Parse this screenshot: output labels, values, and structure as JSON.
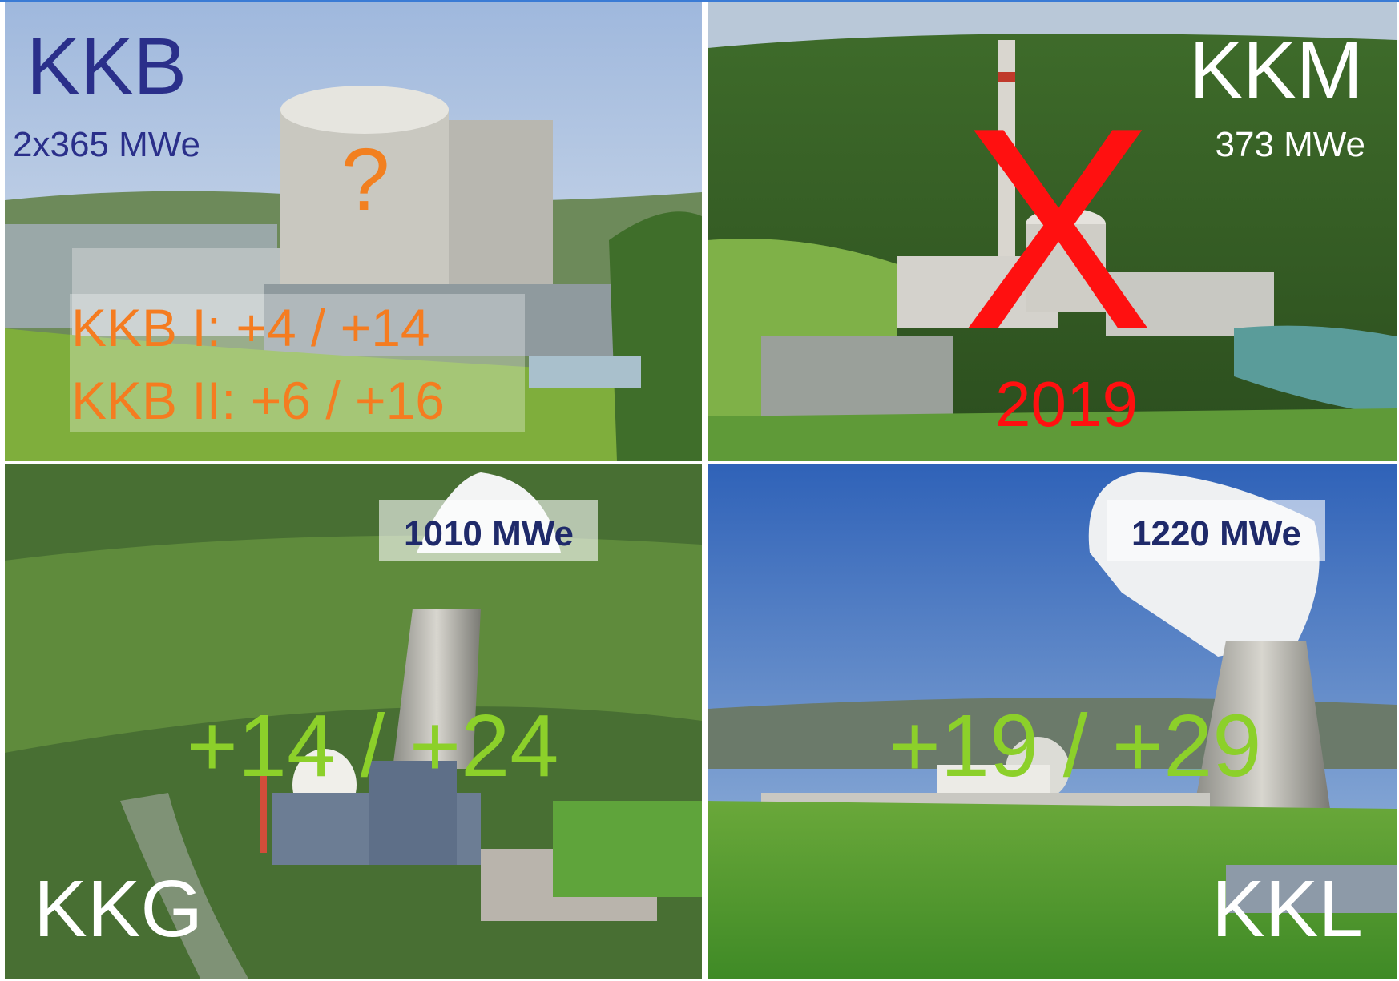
{
  "panels": [
    {
      "name": "KKB",
      "capacity": "2x365 MWe",
      "mark": "?",
      "lines": [
        "KKB I: +4 / +14",
        "KKB II: +6 / +16"
      ]
    },
    {
      "name": "KKM",
      "capacity": "373 MWe",
      "mark": "X",
      "lines": [
        "2019"
      ]
    },
    {
      "name": "KKG",
      "capacity": "1010 MWe",
      "lines": [
        "+14 / +24"
      ]
    },
    {
      "name": "KKL",
      "capacity": "1220 MWe",
      "lines": [
        "+19 / +29"
      ]
    }
  ]
}
